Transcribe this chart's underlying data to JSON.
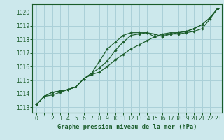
{
  "title": "Graphe pression niveau de la mer (hPa)",
  "bg_color": "#cce8ec",
  "grid_color": "#aad0d8",
  "line_color": "#1a5c2a",
  "xlim": [
    -0.5,
    23.5
  ],
  "ylim": [
    1012.6,
    1020.6
  ],
  "yticks": [
    1013,
    1014,
    1015,
    1016,
    1017,
    1018,
    1019,
    1020
  ],
  "xticks": [
    0,
    1,
    2,
    3,
    4,
    5,
    6,
    7,
    8,
    9,
    10,
    11,
    12,
    13,
    14,
    15,
    16,
    17,
    18,
    19,
    20,
    21,
    22,
    23
  ],
  "series": [
    [
      1013.2,
      1013.8,
      1013.9,
      1014.1,
      1014.3,
      1014.5,
      1015.1,
      1015.4,
      1015.6,
      1016.0,
      1016.5,
      1016.9,
      1017.3,
      1017.6,
      1017.9,
      1018.2,
      1018.3,
      1018.4,
      1018.5,
      1018.6,
      1018.8,
      1019.1,
      1019.6,
      1020.3
    ],
    [
      1013.2,
      1013.8,
      1014.1,
      1014.2,
      1014.3,
      1014.5,
      1015.1,
      1015.5,
      1015.9,
      1016.4,
      1017.2,
      1017.8,
      1018.3,
      1018.4,
      1018.5,
      1018.4,
      1018.2,
      1018.4,
      1018.4,
      1018.5,
      1018.6,
      1018.8,
      1019.5,
      1020.3
    ],
    [
      1013.2,
      1013.8,
      1014.1,
      1014.2,
      1014.3,
      1014.5,
      1015.1,
      1015.5,
      1016.4,
      1017.3,
      1017.8,
      1018.3,
      1018.5,
      1018.5,
      1018.5,
      1018.2,
      1018.4,
      1018.5,
      1018.5,
      1018.6,
      1018.8,
      1019.1,
      1019.6,
      1020.3
    ]
  ],
  "tick_fontsize": 5.5,
  "label_fontsize": 6.2
}
